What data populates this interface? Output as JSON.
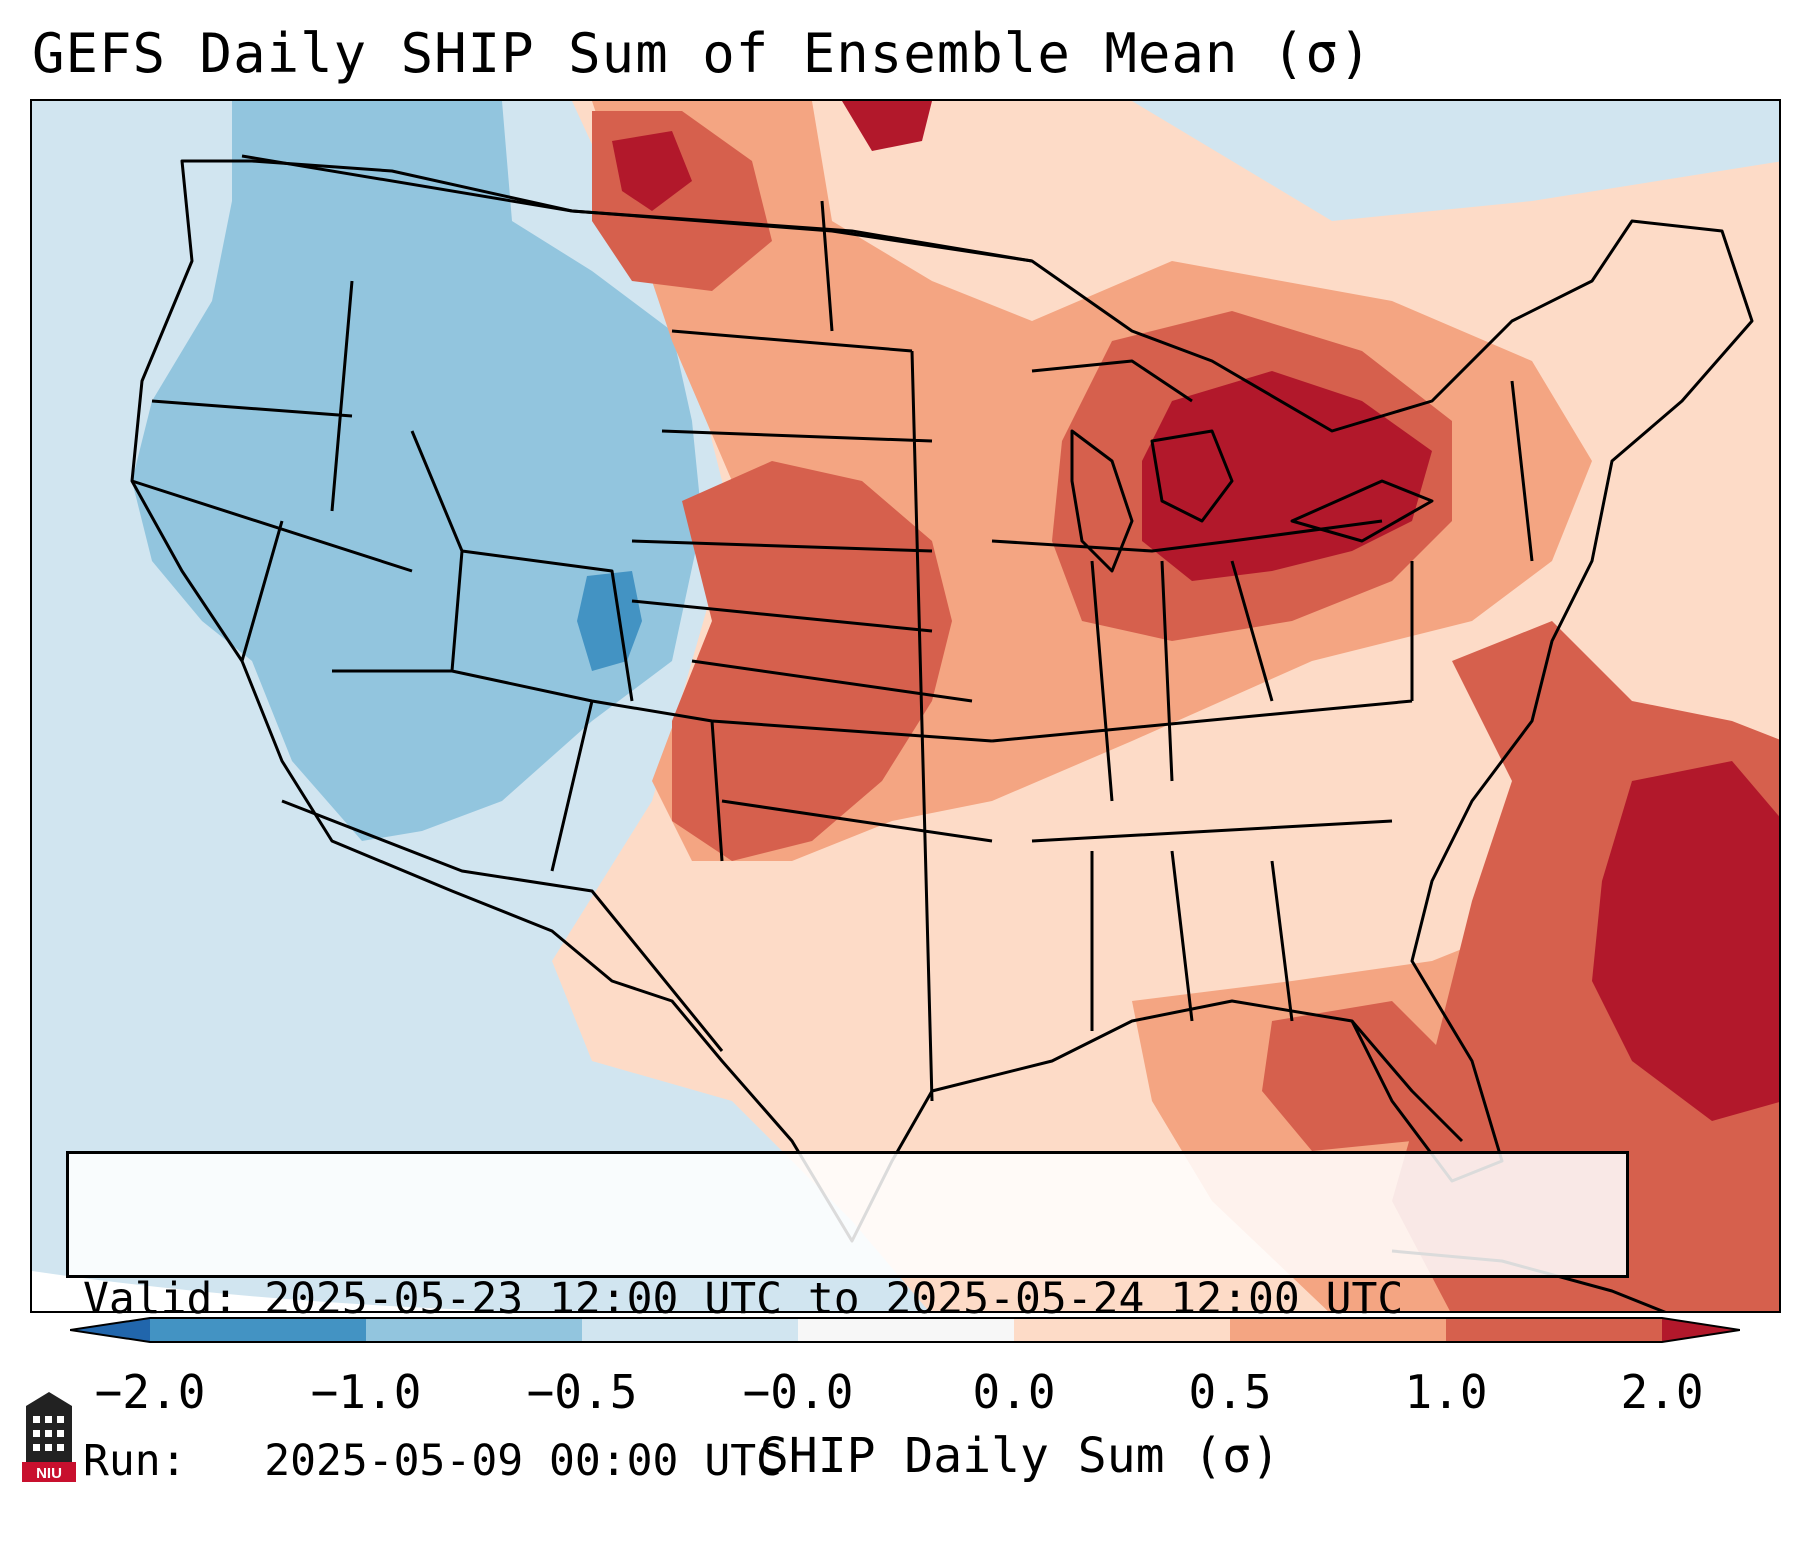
{
  "title": "GEFS Daily SHIP Sum of Ensemble Mean (σ)",
  "info": {
    "valid_line": "Valid: 2025-05-23 12:00 UTC to 2025-05-24 12:00 UTC",
    "run_line": "Run:   2025-05-09 00:00 UTC"
  },
  "colorbar": {
    "label": "SHIP Daily Sum (σ)",
    "ticks": [
      "−2.0",
      "−1.0",
      "−0.5",
      "−0.0",
      "0.0",
      "0.5",
      "1.0",
      "2.0"
    ],
    "colors": {
      "below": "#2166ac",
      "bins": [
        "#4393c3",
        "#92c5de",
        "#d1e5f0",
        "#f7f7f7",
        "#fddbc7",
        "#f4a582",
        "#d6604d"
      ],
      "above": "#b2182b"
    }
  },
  "legend_colors": {
    "strong_negative": "#4393c3",
    "moderate_negative": "#92c5de",
    "weak_negative": "#d1e5f0",
    "weak_positive": "#fddbc7",
    "moderate_positive": "#f4a582",
    "strong_positive": "#d6604d",
    "very_strong_positive": "#b2182b"
  },
  "logo": {
    "text": "NIU",
    "icon": "university-tower-logo"
  }
}
